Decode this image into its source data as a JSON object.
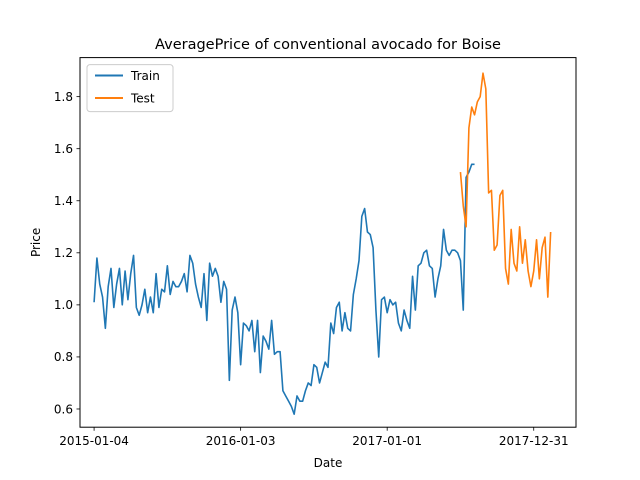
{
  "chart_data": {
    "type": "line",
    "title": "AveragePrice of conventional avocado for Boise",
    "xlabel": "Date",
    "ylabel": "Price",
    "xlim": [
      "2014-11-30",
      "2018-04-15"
    ],
    "ylim": [
      0.53,
      1.95
    ],
    "x_ticks": [
      "2015-01-04",
      "2016-01-03",
      "2017-01-01",
      "2017-12-31"
    ],
    "y_ticks": [
      0.6,
      0.8,
      1.0,
      1.2,
      1.4,
      1.6,
      1.8
    ],
    "y_tick_labels": [
      "0.6",
      "0.8",
      "1.0",
      "1.2",
      "1.4",
      "1.6",
      "1.8"
    ],
    "grid": false,
    "legend_position": "top-left",
    "series": [
      {
        "name": "Train",
        "color": "#1f77b4",
        "start": "2015-01-04",
        "step_days": 7,
        "values": [
          1.01,
          1.18,
          1.08,
          1.03,
          0.91,
          1.07,
          1.14,
          0.99,
          1.08,
          1.14,
          1.0,
          1.13,
          1.02,
          1.12,
          1.19,
          0.99,
          0.96,
          1.0,
          1.06,
          0.97,
          1.03,
          0.97,
          1.12,
          0.99,
          1.06,
          1.05,
          1.15,
          1.04,
          1.09,
          1.07,
          1.07,
          1.09,
          1.12,
          1.05,
          1.19,
          1.16,
          1.08,
          1.03,
          0.99,
          1.12,
          0.94,
          1.16,
          1.11,
          1.14,
          1.11,
          1.01,
          1.09,
          1.06,
          0.71,
          0.98,
          1.03,
          0.97,
          0.77,
          0.93,
          0.92,
          0.9,
          0.94,
          0.82,
          0.94,
          0.74,
          0.88,
          0.86,
          0.83,
          0.94,
          0.81,
          0.82,
          0.82,
          0.67,
          0.65,
          0.63,
          0.61,
          0.58,
          0.65,
          0.63,
          0.63,
          0.67,
          0.7,
          0.69,
          0.77,
          0.76,
          0.7,
          0.74,
          0.78,
          0.76,
          0.93,
          0.89,
          0.99,
          1.01,
          0.9,
          0.97,
          0.91,
          0.9,
          1.04,
          1.1,
          1.17,
          1.34,
          1.37,
          1.28,
          1.27,
          1.22,
          0.98,
          0.8,
          1.02,
          1.03,
          0.97,
          1.02,
          1.0,
          1.01,
          0.93,
          0.9,
          0.98,
          0.94,
          0.91,
          1.11,
          0.98,
          1.15,
          1.16,
          1.2,
          1.21,
          1.15,
          1.14,
          1.03,
          1.1,
          1.15,
          1.29,
          1.21,
          1.19,
          1.21,
          1.21,
          1.2,
          1.17,
          0.98,
          1.49,
          1.51,
          1.54,
          1.54
        ]
      },
      {
        "name": "Test",
        "color": "#ff7f0e",
        "start": "2017-07-02",
        "step_days": 7,
        "values": [
          1.51,
          1.38,
          1.3,
          1.68,
          1.76,
          1.73,
          1.78,
          1.8,
          1.89,
          1.83,
          1.43,
          1.44,
          1.21,
          1.23,
          1.42,
          1.44,
          1.14,
          1.08,
          1.29,
          1.16,
          1.13,
          1.3,
          1.16,
          1.25,
          1.13,
          1.07,
          1.13,
          1.25,
          1.1,
          1.22,
          1.26,
          1.03,
          1.28
        ]
      }
    ]
  }
}
